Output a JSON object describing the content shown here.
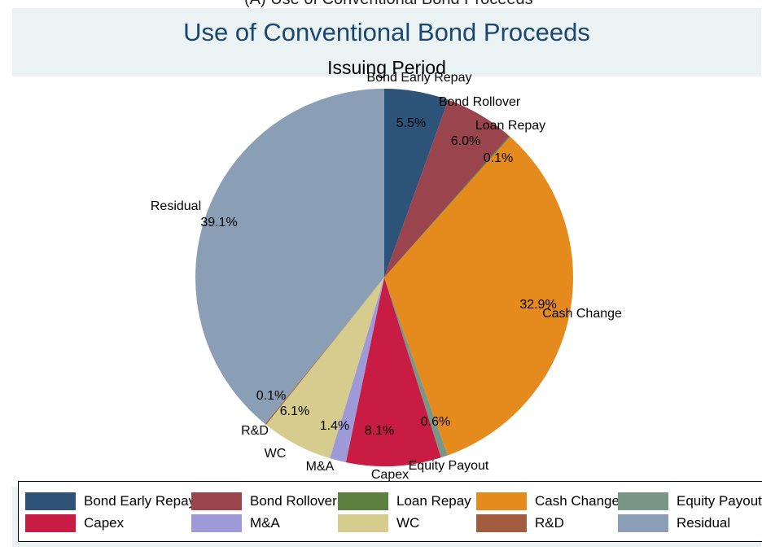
{
  "figure_caption": "(A) Use of Conventional Bond Proceeds",
  "chart_data": {
    "type": "pie",
    "title": "Use of Conventional Bond Proceeds",
    "subtitle": "Issuing Period",
    "start_angle_deg": 0,
    "direction": "clockwise",
    "legend_placement": "bottom",
    "slices": [
      {
        "label": "Bond Early Repay",
        "value": 5.5,
        "value_label": "5.5%",
        "color": "#2e5378"
      },
      {
        "label": "Bond Rollover",
        "value": 6.0,
        "value_label": "6.0%",
        "color": "#9a444e"
      },
      {
        "label": "Loan Repay",
        "value": 0.1,
        "value_label": "0.1%",
        "color": "#5b8040"
      },
      {
        "label": "Cash Change",
        "value": 32.9,
        "value_label": "32.9%",
        "color": "#e58a1c"
      },
      {
        "label": "Equity Payout",
        "value": 0.6,
        "value_label": "0.6%",
        "color": "#7a9687"
      },
      {
        "label": "Capex",
        "value": 8.1,
        "value_label": "8.1%",
        "color": "#c91c45"
      },
      {
        "label": "M&A",
        "value": 1.4,
        "value_label": "1.4%",
        "color": "#9e9ad8"
      },
      {
        "label": "WC",
        "value": 6.1,
        "value_label": "6.1%",
        "color": "#d6cc8e"
      },
      {
        "label": "R&D",
        "value": 0.1,
        "value_label": "0.1%",
        "color": "#a25d3e"
      },
      {
        "label": "Residual",
        "value": 39.1,
        "value_label": "39.1%",
        "color": "#8a9eb5"
      }
    ]
  }
}
